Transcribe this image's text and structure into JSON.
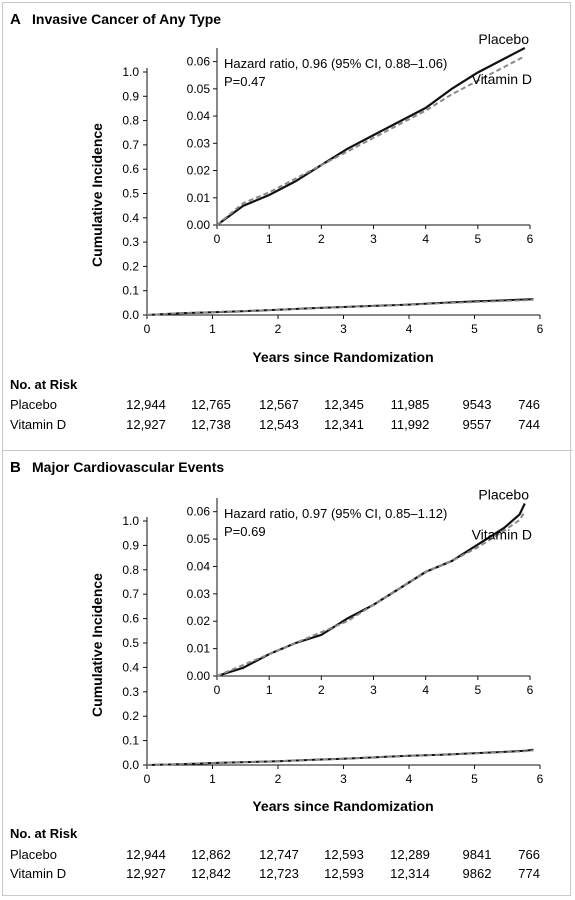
{
  "panels": [
    {
      "letter": "A",
      "title": "Invasive Cancer of Any Type",
      "risk_title": "No. at Risk",
      "risk_rows": [
        {
          "label": "Placebo",
          "values": [
            "12,944",
            "12,765",
            "12,567",
            "12,345",
            "11,985",
            "9543",
            "746"
          ]
        },
        {
          "label": "Vitamin D",
          "values": [
            "12,927",
            "12,738",
            "12,543",
            "12,341",
            "11,992",
            "9557",
            "744"
          ]
        }
      ]
    },
    {
      "letter": "B",
      "title": "Major Cardiovascular Events",
      "risk_title": "No. at Risk",
      "risk_rows": [
        {
          "label": "Placebo",
          "values": [
            "12,944",
            "12,862",
            "12,747",
            "12,593",
            "12,289",
            "9841",
            "766"
          ]
        },
        {
          "label": "Vitamin D",
          "values": [
            "12,927",
            "12,842",
            "12,723",
            "12,593",
            "12,314",
            "9862",
            "774"
          ]
        }
      ]
    }
  ],
  "chart_data": [
    {
      "type": "line",
      "title": "Invasive Cancer of Any Type",
      "xlabel": "Years since Randomization",
      "ylabel": "Cumulative Incidence",
      "xlim": [
        0,
        6
      ],
      "ylim": [
        0,
        1.0
      ],
      "xticks": [
        "0",
        "1",
        "2",
        "3",
        "4",
        "5",
        "6"
      ],
      "yticks": [
        "0.0",
        "0.1",
        "0.2",
        "0.3",
        "0.4",
        "0.5",
        "0.6",
        "0.7",
        "0.8",
        "0.9",
        "1.0"
      ],
      "series": [
        {
          "name": "Placebo",
          "color": "#111111",
          "dashed": false,
          "x": [
            0,
            0.5,
            1,
            1.5,
            2,
            2.5,
            3,
            3.5,
            4,
            4.5,
            5,
            5.5,
            5.8,
            5.9
          ],
          "y": [
            0,
            0.007,
            0.011,
            0.016,
            0.022,
            0.028,
            0.033,
            0.038,
            0.043,
            0.05,
            0.056,
            0.061,
            0.064,
            0.065
          ]
        },
        {
          "name": "Vitamin D",
          "color": "#8a8a8a",
          "dashed": true,
          "x": [
            0,
            0.5,
            1,
            1.5,
            2,
            2.5,
            3,
            3.5,
            4,
            4.5,
            5,
            5.5,
            5.8,
            5.9
          ],
          "y": [
            0,
            0.008,
            0.012,
            0.017,
            0.022,
            0.027,
            0.032,
            0.037,
            0.042,
            0.048,
            0.053,
            0.058,
            0.061,
            0.062
          ]
        }
      ],
      "inset": {
        "xlim": [
          0,
          6
        ],
        "ylim": [
          0,
          0.065
        ],
        "xticks": [
          "0",
          "1",
          "2",
          "3",
          "4",
          "5",
          "6"
        ],
        "yticks": [
          "0.00",
          "0.01",
          "0.02",
          "0.03",
          "0.04",
          "0.05",
          "0.06"
        ],
        "annotation": [
          "Hazard ratio, 0.96 (95% CI, 0.88–1.06)",
          "P=0.47"
        ]
      }
    },
    {
      "type": "line",
      "title": "Major Cardiovascular Events",
      "xlabel": "Years since Randomization",
      "ylabel": "Cumulative Incidence",
      "xlim": [
        0,
        6
      ],
      "ylim": [
        0,
        1.0
      ],
      "xticks": [
        "0",
        "1",
        "2",
        "3",
        "4",
        "5",
        "6"
      ],
      "yticks": [
        "0.0",
        "0.1",
        "0.2",
        "0.3",
        "0.4",
        "0.5",
        "0.6",
        "0.7",
        "0.8",
        "0.9",
        "1.0"
      ],
      "series": [
        {
          "name": "Placebo",
          "color": "#111111",
          "dashed": false,
          "x": [
            0,
            0.5,
            1,
            1.5,
            2,
            2.5,
            3,
            3.5,
            4,
            4.5,
            5,
            5.5,
            5.8,
            5.9
          ],
          "y": [
            0,
            0.003,
            0.008,
            0.012,
            0.015,
            0.021,
            0.026,
            0.032,
            0.038,
            0.042,
            0.048,
            0.054,
            0.059,
            0.063
          ]
        },
        {
          "name": "Vitamin D",
          "color": "#8a8a8a",
          "dashed": true,
          "x": [
            0,
            0.5,
            1,
            1.5,
            2,
            2.5,
            3,
            3.5,
            4,
            4.5,
            5,
            5.5,
            5.8,
            5.9
          ],
          "y": [
            0,
            0.004,
            0.008,
            0.012,
            0.016,
            0.02,
            0.026,
            0.032,
            0.038,
            0.042,
            0.047,
            0.053,
            0.057,
            0.06
          ]
        }
      ],
      "inset": {
        "xlim": [
          0,
          6
        ],
        "ylim": [
          0,
          0.065
        ],
        "xticks": [
          "0",
          "1",
          "2",
          "3",
          "4",
          "5",
          "6"
        ],
        "yticks": [
          "0.00",
          "0.01",
          "0.02",
          "0.03",
          "0.04",
          "0.05",
          "0.06"
        ],
        "annotation": [
          "Hazard ratio, 0.97 (95% CI, 0.85–1.12)",
          "P=0.69"
        ]
      }
    }
  ]
}
